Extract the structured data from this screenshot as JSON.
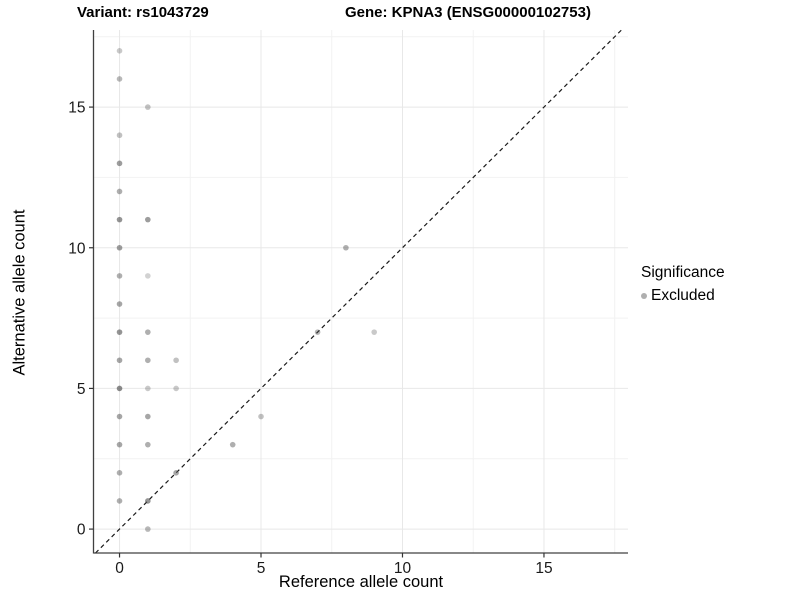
{
  "chart_data": {
    "type": "scatter",
    "title_variant": "Variant: rs1043729",
    "title_gene": "Gene: KPNA3 (ENSG00000102753)",
    "xlabel": "Reference allele count",
    "ylabel": "Alternative allele count",
    "xlim": [
      -0.92,
      17.97
    ],
    "ylim": [
      -0.85,
      17.74
    ],
    "x_ticks": [
      0,
      5,
      10,
      15
    ],
    "y_ticks": [
      0,
      5,
      10,
      15
    ],
    "x_minor_ticks": [
      2.5,
      7.5,
      12.5,
      17.5
    ],
    "y_minor_ticks": [
      2.5,
      7.5,
      12.5,
      17.5
    ],
    "grid": true,
    "legend_position": "right",
    "diagonal_line": {
      "equation": "y = x",
      "style": "dashed",
      "color": "#1a1a1a"
    },
    "point_color": "#4d4d4d",
    "major_grid_color": "#e8e8e8",
    "minor_grid_color": "#f2f2f2",
    "axis_line_color": "#404040",
    "points": [
      {
        "x": 0,
        "y": 1,
        "opacity": 0.45
      },
      {
        "x": 0,
        "y": 2,
        "opacity": 0.45
      },
      {
        "x": 0,
        "y": 3,
        "opacity": 0.5
      },
      {
        "x": 0,
        "y": 4,
        "opacity": 0.5
      },
      {
        "x": 0,
        "y": 5,
        "opacity": 0.65
      },
      {
        "x": 0,
        "y": 6,
        "opacity": 0.5
      },
      {
        "x": 0,
        "y": 7,
        "opacity": 0.6
      },
      {
        "x": 0,
        "y": 8,
        "opacity": 0.5
      },
      {
        "x": 0,
        "y": 9,
        "opacity": 0.45
      },
      {
        "x": 0,
        "y": 10,
        "opacity": 0.55
      },
      {
        "x": 0,
        "y": 11,
        "opacity": 0.6
      },
      {
        "x": 0,
        "y": 12,
        "opacity": 0.45
      },
      {
        "x": 0,
        "y": 13,
        "opacity": 0.55
      },
      {
        "x": 0,
        "y": 14,
        "opacity": 0.35
      },
      {
        "x": 0,
        "y": 16,
        "opacity": 0.4
      },
      {
        "x": 0,
        "y": 17,
        "opacity": 0.3
      },
      {
        "x": 1,
        "y": 0,
        "opacity": 0.4
      },
      {
        "x": 1,
        "y": 1,
        "opacity": 0.6
      },
      {
        "x": 1,
        "y": 3,
        "opacity": 0.45
      },
      {
        "x": 1,
        "y": 4,
        "opacity": 0.5
      },
      {
        "x": 1,
        "y": 5,
        "opacity": 0.3
      },
      {
        "x": 1,
        "y": 6,
        "opacity": 0.45
      },
      {
        "x": 1,
        "y": 7,
        "opacity": 0.45
      },
      {
        "x": 1,
        "y": 9,
        "opacity": 0.25
      },
      {
        "x": 1,
        "y": 11,
        "opacity": 0.55
      },
      {
        "x": 1,
        "y": 15,
        "opacity": 0.35
      },
      {
        "x": 2,
        "y": 2,
        "opacity": 0.5
      },
      {
        "x": 2,
        "y": 5,
        "opacity": 0.3
      },
      {
        "x": 2,
        "y": 6,
        "opacity": 0.35
      },
      {
        "x": 4,
        "y": 3,
        "opacity": 0.45
      },
      {
        "x": 5,
        "y": 4,
        "opacity": 0.35
      },
      {
        "x": 7,
        "y": 7,
        "opacity": 0.4
      },
      {
        "x": 8,
        "y": 10,
        "opacity": 0.45
      },
      {
        "x": 9,
        "y": 7,
        "opacity": 0.3
      }
    ],
    "legend": {
      "title": "Significance",
      "items": [
        {
          "label": "Excluded",
          "color": "#4d4d4d",
          "opacity": 0.45
        }
      ]
    }
  }
}
